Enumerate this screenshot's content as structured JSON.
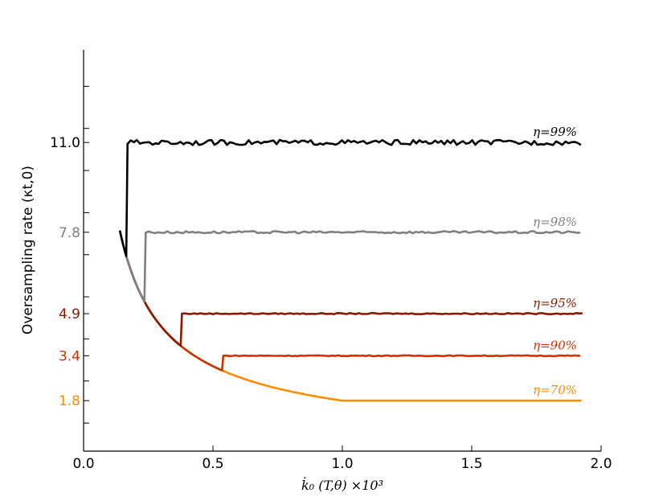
{
  "chart_data": {
    "type": "line",
    "xlabel": "k̇₀ (T,θ) ×10³",
    "ylabel": "Oversampling rate (κt,0)",
    "xlim": [
      0.0,
      2.0
    ],
    "ylim": [
      0.0,
      14.3
    ],
    "x_ticks": [
      "0.0",
      "0.5",
      "1.0",
      "1.5",
      "2.0"
    ],
    "x_tick_values": [
      0.0,
      0.5,
      1.0,
      1.5,
      2.0
    ],
    "y_ticks": [
      {
        "value": 11.0,
        "label": "11.0",
        "color": "#000000"
      },
      {
        "value": 7.8,
        "label": "7.8",
        "color": "#808080"
      },
      {
        "value": 4.9,
        "label": "4.9",
        "color": "#8b1a00"
      },
      {
        "value": 3.4,
        "label": "3.4",
        "color": "#cc3300"
      },
      {
        "value": 1.8,
        "label": "1.8",
        "color": "#ff8c00"
      }
    ],
    "minor_y_ticks": [
      1.0,
      2.5,
      4.0,
      5.5,
      7.0,
      8.5,
      10.0,
      11.5,
      13.0
    ],
    "curve": {
      "a": 1.8,
      "k": 0.75
    },
    "series": [
      {
        "name": "η=70%",
        "label": "η=70%",
        "plateau": 1.8,
        "knee_x": 1.0,
        "color": "#ff8c00",
        "noise": 0.0
      },
      {
        "name": "η=90%",
        "label": "η=90%",
        "plateau": 3.4,
        "knee_x": 0.54,
        "color": "#cc3300",
        "noise": 0.015
      },
      {
        "name": "η=95%",
        "label": "η=95%",
        "plateau": 4.9,
        "knee_x": 0.38,
        "color": "#8b1a00",
        "noise": 0.02
      },
      {
        "name": "η=98%",
        "label": "η=98%",
        "plateau": 7.8,
        "knee_x": 0.24,
        "color": "#808080",
        "noise": 0.04
      },
      {
        "name": "η=99%",
        "label": "η=99%",
        "plateau": 11.0,
        "knee_x": 0.17,
        "color": "#000000",
        "noise": 0.09
      }
    ]
  }
}
